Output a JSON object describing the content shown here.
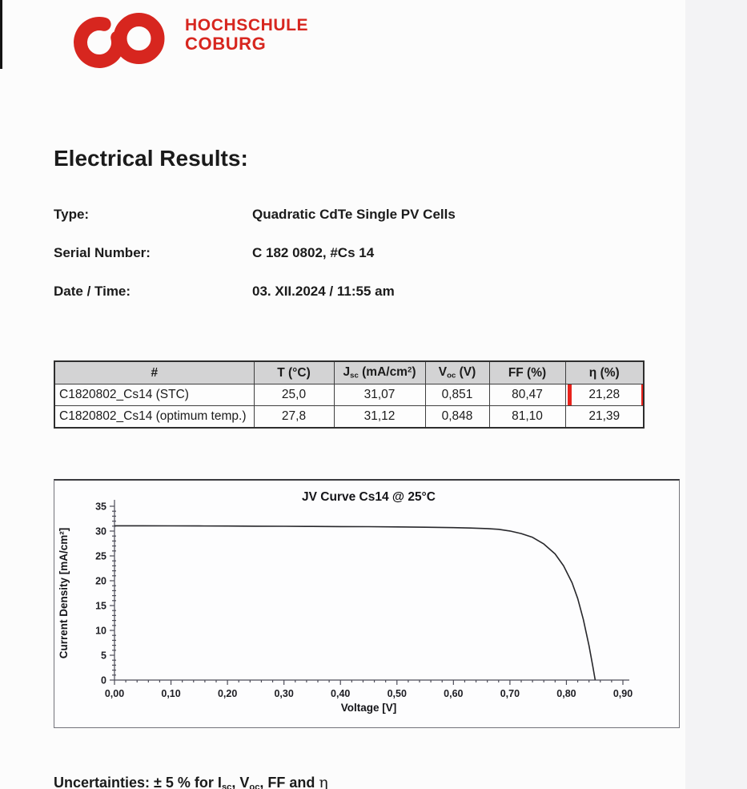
{
  "colors": {
    "brand_red": "#d7261f",
    "highlight_red": "#e8231c",
    "header_gray": "#d3d3d4"
  },
  "logo": {
    "line1": "HOCHSCHULE",
    "line2": "COBURG"
  },
  "heading": "Electrical Results:",
  "meta": {
    "type_label": "Type:",
    "type_value": "Quadratic CdTe Single PV Cells",
    "serial_label": "Serial Number:",
    "serial_value": "C 182 0802, #Cs 14",
    "datetime_label": "Date / Time:",
    "datetime_value": "03. XII.2024 / 11:55 am"
  },
  "table": {
    "headers": {
      "col0": "#",
      "col1": "T (°C)",
      "col2": {
        "base": "J",
        "sub": "sc",
        "mid": " (mA/cm",
        "sup": "2",
        "end": ")"
      },
      "col3": {
        "base": "V",
        "sub": "oc",
        "mid": " (V)"
      },
      "col4": "FF (%)",
      "col5": "η (%)"
    },
    "rows": [
      {
        "cells": [
          "C1820802_Cs14 (STC)",
          "25,0",
          "31,07",
          "0,851",
          "80,47",
          "21,28"
        ]
      },
      {
        "cells": [
          "C1820802_Cs14 (optimum temp.)",
          "27,8",
          "31,12",
          "0,848",
          "81,10",
          "21,39"
        ]
      }
    ]
  },
  "chart_data": {
    "type": "line",
    "title": "JV Curve Cs14 @ 25°C",
    "xlabel": "Voltage [V]",
    "ylabel": "Current Density [mA/cm²]",
    "xlim": [
      0,
      0.9
    ],
    "ylim": [
      0,
      35
    ],
    "grid": false,
    "legend": "none",
    "xticks": [
      0,
      0.1,
      0.2,
      0.3,
      0.4,
      0.5,
      0.6,
      0.7,
      0.8,
      0.9
    ],
    "xtick_labels": [
      "0,00",
      "0,10",
      "0,20",
      "0,30",
      "0,40",
      "0,50",
      "0,60",
      "0,70",
      "0,80",
      "0,90"
    ],
    "x_minor_step": 0.02,
    "yticks": [
      0,
      5,
      10,
      15,
      20,
      25,
      30,
      35
    ],
    "ytick_labels": [
      "0",
      "5",
      "10",
      "15",
      "20",
      "25",
      "30",
      "35"
    ],
    "y_minor_step": 1,
    "series": [
      {
        "name": "JV curve 25°C",
        "points": [
          [
            0.0,
            31.07
          ],
          [
            0.05,
            31.06
          ],
          [
            0.1,
            31.05
          ],
          [
            0.15,
            31.03
          ],
          [
            0.2,
            31.01
          ],
          [
            0.25,
            30.99
          ],
          [
            0.3,
            30.97
          ],
          [
            0.35,
            30.94
          ],
          [
            0.4,
            30.91
          ],
          [
            0.45,
            30.88
          ],
          [
            0.5,
            30.84
          ],
          [
            0.55,
            30.78
          ],
          [
            0.6,
            30.7
          ],
          [
            0.63,
            30.62
          ],
          [
            0.66,
            30.5
          ],
          [
            0.68,
            30.36
          ],
          [
            0.7,
            30.02
          ],
          [
            0.72,
            29.5
          ],
          [
            0.74,
            28.75
          ],
          [
            0.76,
            27.4
          ],
          [
            0.78,
            25.4
          ],
          [
            0.795,
            23.0
          ],
          [
            0.81,
            19.6
          ],
          [
            0.82,
            16.4
          ],
          [
            0.83,
            12.2
          ],
          [
            0.84,
            6.9
          ],
          [
            0.847,
            2.6
          ],
          [
            0.851,
            0.0
          ]
        ]
      }
    ]
  },
  "uncertainties": {
    "prefix": "Uncertainties: ± 5 % for I",
    "sub1": "sc",
    "mid1": ", V",
    "sub2": "oc",
    "suffix": ", FF and ",
    "eta": "η"
  }
}
